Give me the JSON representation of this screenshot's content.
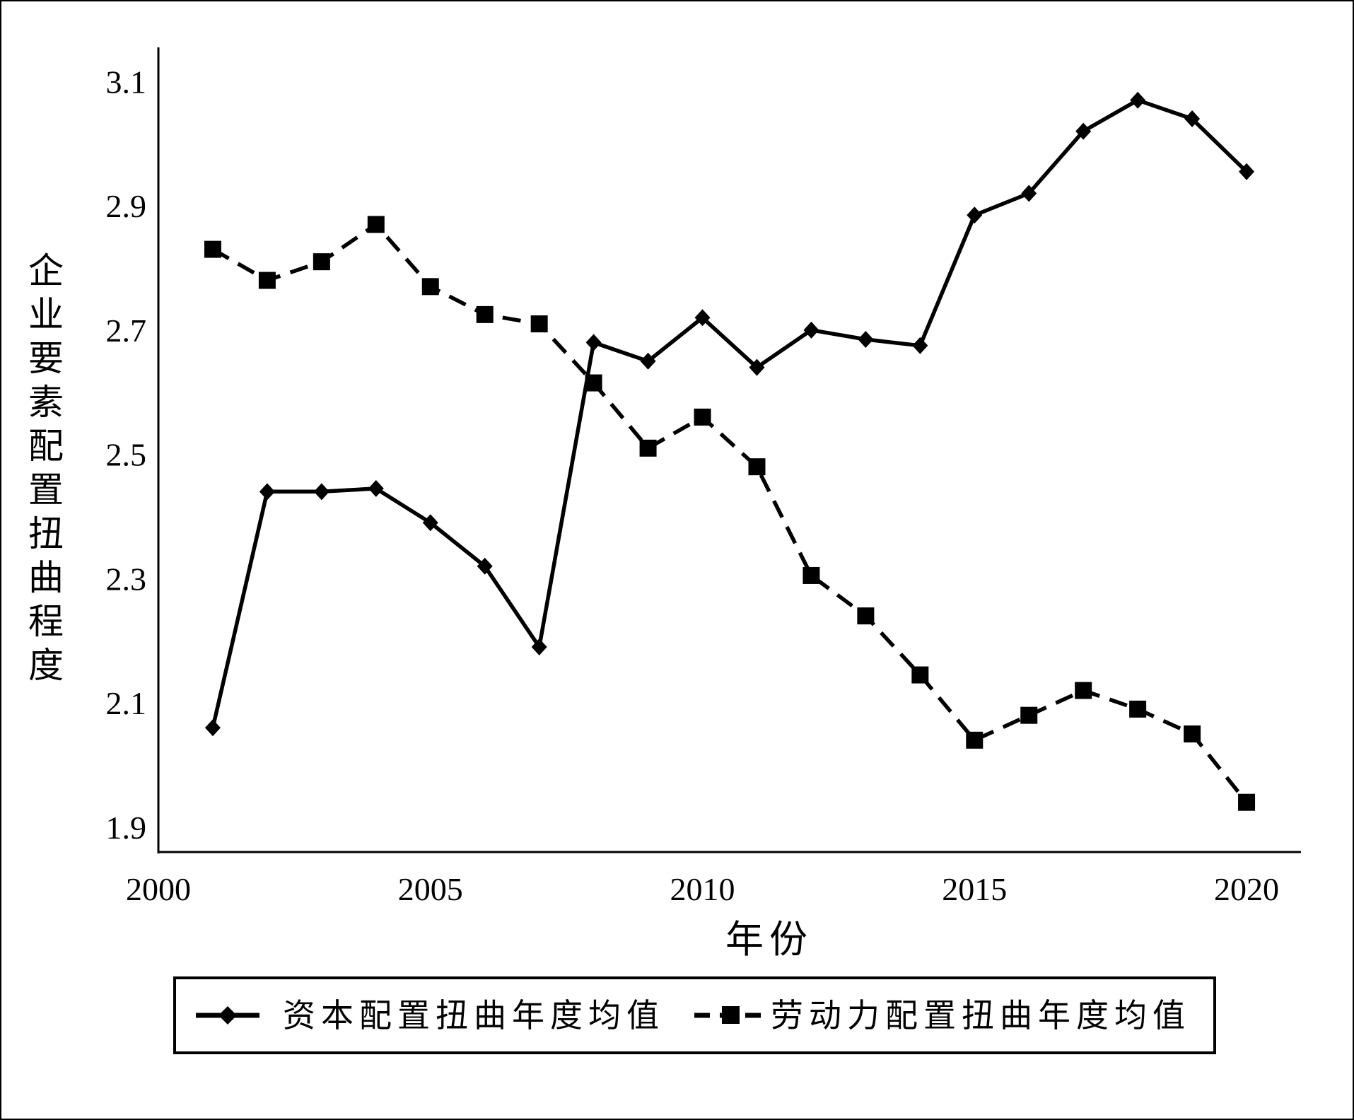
{
  "chart_data": {
    "type": "line",
    "title": "",
    "xlabel": "年份",
    "ylabel": "企业要素配置扭曲程度",
    "xlim": [
      2000,
      2021
    ],
    "ylim": [
      1.86,
      3.155
    ],
    "xticks": [
      2000,
      2005,
      2010,
      2015,
      2020
    ],
    "yticks": [
      1.9,
      2.1,
      2.3,
      2.5,
      2.7,
      2.9,
      3.1
    ],
    "ytick_labels": [
      "1.9",
      "2.1",
      "2.3",
      "2.5",
      "2.7",
      "2.9",
      "3.1"
    ],
    "grid": false,
    "legend_position": "bottom",
    "x": [
      2001,
      2002,
      2003,
      2004,
      2005,
      2006,
      2007,
      2008,
      2009,
      2010,
      2011,
      2012,
      2013,
      2014,
      2015,
      2016,
      2017,
      2018,
      2019,
      2020
    ],
    "series": [
      {
        "name": "资本配置扭曲年度均值",
        "line_style": "solid",
        "marker": "diamond",
        "color": "#000000",
        "values": [
          2.06,
          2.44,
          2.44,
          2.445,
          2.39,
          2.32,
          2.19,
          2.68,
          2.65,
          2.72,
          2.64,
          2.7,
          2.685,
          2.675,
          2.885,
          2.92,
          3.02,
          3.07,
          3.04,
          2.955
        ]
      },
      {
        "name": "劳动力配置扭曲年度均值",
        "line_style": "dashed",
        "marker": "square",
        "color": "#000000",
        "values": [
          2.83,
          2.78,
          2.81,
          2.87,
          2.77,
          2.725,
          2.71,
          2.615,
          2.51,
          2.56,
          2.48,
          2.305,
          2.24,
          2.145,
          2.04,
          2.08,
          2.12,
          2.09,
          2.05,
          1.94
        ]
      }
    ]
  }
}
